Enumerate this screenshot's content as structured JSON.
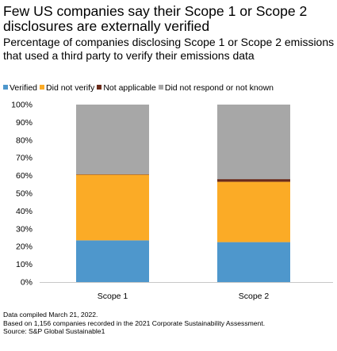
{
  "title": "Few US companies say their Scope 1 or Scope 2 disclosures are externally verified",
  "subtitle": "Percentage of companies disclosing Scope 1 or Scope 2 emissions that used a third party to verify their emissions data",
  "notes": [
    "Data compiled March 21, 2022.",
    "Based on 1,156 companies recorded in the 2021 Corporate Sustainability Assessment.",
    "Source: S&P Global Sustainable1"
  ],
  "chart_data": {
    "type": "bar",
    "stacked": true,
    "categories": [
      "Scope 1",
      "Scope 2"
    ],
    "series": [
      {
        "name": "Verified",
        "color": "#4e97cc",
        "values": [
          23.5,
          22.5
        ]
      },
      {
        "name": "Did not verify",
        "color": "#fbab26",
        "values": [
          37,
          34
        ]
      },
      {
        "name": "Not applicable",
        "color": "#6b2c1c",
        "values": [
          0.2,
          1.5
        ]
      },
      {
        "name": "Did not respond or not known",
        "color": "#a7a7a7",
        "values": [
          39.3,
          42
        ]
      }
    ],
    "ylim": [
      0,
      100
    ],
    "yticks": [
      "0%",
      "10%",
      "20%",
      "30%",
      "40%",
      "50%",
      "60%",
      "70%",
      "80%",
      "90%",
      "100%"
    ],
    "legend_position": "top",
    "grid": false
  }
}
